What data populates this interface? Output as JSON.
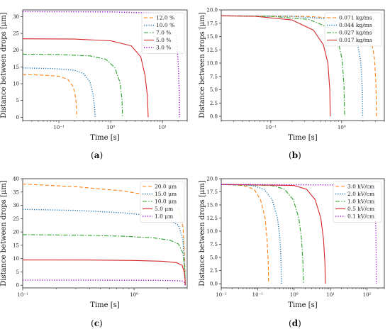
{
  "chart_data": [
    {
      "panel_label": "a",
      "type": "line",
      "xlabel": "Time [s]",
      "ylabel": "Distance between drops [μm]",
      "xscale": "log",
      "xlim": [
        0.02,
        30
      ],
      "ylim": [
        -1,
        32
      ],
      "yticks": [
        0,
        5,
        10,
        15,
        20,
        25,
        30
      ],
      "xtick_labels": [
        "10⁻¹",
        "10⁰",
        "10¹"
      ],
      "legend_position": "top-right",
      "series": [
        {
          "name": "12.0  %",
          "color": "#ff7f0e",
          "dash": "5,3",
          "points": [
            [
              0.02,
              12.7
            ],
            [
              0.05,
              12.55
            ],
            [
              0.1,
              12.2
            ],
            [
              0.15,
              11.3
            ],
            [
              0.19,
              9.0
            ],
            [
              0.21,
              6.0
            ],
            [
              0.22,
              2.5
            ],
            [
              0.22,
              0
            ]
          ]
        },
        {
          "name": "10.0  %",
          "color": "#1f77b4",
          "dash": "1.2,2",
          "points": [
            [
              0.02,
              14.7
            ],
            [
              0.08,
              14.5
            ],
            [
              0.2,
              14.0
            ],
            [
              0.3,
              13.0
            ],
            [
              0.4,
              10.5
            ],
            [
              0.46,
              6.5
            ],
            [
              0.49,
              2.5
            ],
            [
              0.5,
              0
            ]
          ]
        },
        {
          "name": "7.0  %",
          "color": "#2ca02c",
          "dash": "6,2,1.5,2",
          "points": [
            [
              0.02,
              18.8
            ],
            [
              0.1,
              18.7
            ],
            [
              0.4,
              18.3
            ],
            [
              0.8,
              17.3
            ],
            [
              1.2,
              14.8
            ],
            [
              1.5,
              10.5
            ],
            [
              1.65,
              5.5
            ],
            [
              1.7,
              0
            ]
          ]
        },
        {
          "name": "5.0  %",
          "color": "#d62728",
          "dash": "",
          "points": [
            [
              0.02,
              23.4
            ],
            [
              0.2,
              23.3
            ],
            [
              1.0,
              22.8
            ],
            [
              2.5,
              21.3
            ],
            [
              3.8,
              18.0
            ],
            [
              4.6,
              12.5
            ],
            [
              5.1,
              6.5
            ],
            [
              5.3,
              0
            ]
          ]
        },
        {
          "name": "3.0  %",
          "color": "#9400d3",
          "dash": "1.2,2.2",
          "points": [
            [
              0.02,
              31.5
            ],
            [
              1.0,
              31.4
            ],
            [
              6.0,
              31.1
            ],
            [
              12.0,
              30.3
            ],
            [
              16.0,
              28.5
            ],
            [
              18.5,
              24.0
            ],
            [
              20.0,
              17.0
            ],
            [
              21.0,
              8.0
            ],
            [
              21.3,
              0
            ]
          ]
        }
      ]
    },
    {
      "panel_label": "b",
      "type": "line",
      "xlabel": "Time [s]",
      "ylabel": "Distance between drops [μm]",
      "xscale": "log",
      "xlim": [
        0.02,
        4
      ],
      "ylim": [
        -0.8,
        20
      ],
      "yticks": [
        0.0,
        2.5,
        5.0,
        7.5,
        10.0,
        12.5,
        15.0,
        17.5,
        20.0
      ],
      "ytick_labels": [
        "0.0",
        "2.5",
        "5.0",
        "7.5",
        "10.0",
        "12.5",
        "15.0",
        "17.5",
        "20.0"
      ],
      "xtick_labels": [
        "10⁻¹",
        "10⁰"
      ],
      "legend_position": "top-right",
      "series": [
        {
          "name": "0.071  kg/ms",
          "color": "#ff7f0e",
          "dash": "5,3",
          "points": [
            [
              0.02,
              18.9
            ],
            [
              0.3,
              18.8
            ],
            [
              1.0,
              18.4
            ],
            [
              2.0,
              17.0
            ],
            [
              2.6,
              14.5
            ],
            [
              2.9,
              11.0
            ],
            [
              3.05,
              6.0
            ],
            [
              3.1,
              0
            ]
          ]
        },
        {
          "name": "0.044  kg/ms",
          "color": "#1f77b4",
          "dash": "1.2,2",
          "points": [
            [
              0.02,
              18.9
            ],
            [
              0.2,
              18.8
            ],
            [
              0.7,
              18.3
            ],
            [
              1.3,
              16.8
            ],
            [
              1.65,
              14.0
            ],
            [
              1.85,
              10.5
            ],
            [
              1.95,
              5.5
            ],
            [
              1.98,
              0
            ]
          ]
        },
        {
          "name": "0.027  kg/ms",
          "color": "#2ca02c",
          "dash": "6,2,1.5,2",
          "points": [
            [
              0.02,
              18.9
            ],
            [
              0.1,
              18.8
            ],
            [
              0.35,
              18.2
            ],
            [
              0.7,
              16.5
            ],
            [
              0.9,
              14.0
            ],
            [
              1.02,
              10.5
            ],
            [
              1.08,
              5.5
            ],
            [
              1.1,
              0
            ]
          ]
        },
        {
          "name": "0.017  kg/ms",
          "color": "#d62728",
          "dash": "",
          "points": [
            [
              0.02,
              18.9
            ],
            [
              0.06,
              18.8
            ],
            [
              0.2,
              18.1
            ],
            [
              0.4,
              16.2
            ],
            [
              0.55,
              13.5
            ],
            [
              0.64,
              10.0
            ],
            [
              0.68,
              5.0
            ],
            [
              0.69,
              0
            ]
          ]
        }
      ]
    },
    {
      "panel_label": "c",
      "type": "line",
      "xlabel": "Time [s]",
      "ylabel": "Distance between drops [μm]",
      "xscale": "log",
      "xlim": [
        0.1,
        3.0
      ],
      "ylim": [
        -1,
        40
      ],
      "yticks": [
        0,
        5,
        10,
        15,
        20,
        25,
        30,
        35,
        40
      ],
      "xtick_labels": [
        "10⁻¹",
        "10⁰"
      ],
      "legend_position": "top-right",
      "series": [
        {
          "name": "20.0 μm",
          "color": "#ff7f0e",
          "dash": "5,3",
          "points": [
            [
              0.1,
              38.0
            ],
            [
              0.3,
              37.0
            ],
            [
              0.8,
              35.4
            ],
            [
              1.5,
              33.5
            ],
            [
              2.1,
              31.5
            ],
            [
              2.5,
              29.0
            ],
            [
              2.75,
              22.0
            ],
            [
              2.85,
              10.0
            ],
            [
              2.88,
              0
            ]
          ]
        },
        {
          "name": "15.0 μm",
          "color": "#1f77b4",
          "dash": "1.2,2",
          "points": [
            [
              0.1,
              28.5
            ],
            [
              0.3,
              28.1
            ],
            [
              0.8,
              27.2
            ],
            [
              1.5,
              26.0
            ],
            [
              2.1,
              24.5
            ],
            [
              2.5,
              22.5
            ],
            [
              2.75,
              17.0
            ],
            [
              2.85,
              7.0
            ],
            [
              2.88,
              0
            ]
          ]
        },
        {
          "name": "10.0 μm",
          "color": "#2ca02c",
          "dash": "6,2,1.5,2",
          "points": [
            [
              0.1,
              19.0
            ],
            [
              0.3,
              18.8
            ],
            [
              0.8,
              18.4
            ],
            [
              1.5,
              17.8
            ],
            [
              2.1,
              16.9
            ],
            [
              2.5,
              15.5
            ],
            [
              2.75,
              12.0
            ],
            [
              2.85,
              5.0
            ],
            [
              2.88,
              0
            ]
          ]
        },
        {
          "name": "5.0 μm",
          "color": "#d62728",
          "dash": "",
          "points": [
            [
              0.1,
              9.5
            ],
            [
              0.4,
              9.45
            ],
            [
              1.0,
              9.3
            ],
            [
              1.8,
              9.0
            ],
            [
              2.4,
              8.5
            ],
            [
              2.7,
              7.5
            ],
            [
              2.82,
              5.0
            ],
            [
              2.87,
              2.0
            ],
            [
              2.88,
              0
            ]
          ]
        },
        {
          "name": "1.0 μm",
          "color": "#9400d3",
          "dash": "1.2,2.2",
          "points": [
            [
              0.1,
              1.9
            ],
            [
              0.5,
              1.9
            ],
            [
              1.5,
              1.85
            ],
            [
              2.4,
              1.75
            ],
            [
              2.7,
              1.55
            ],
            [
              2.83,
              1.1
            ],
            [
              2.88,
              0
            ]
          ]
        }
      ]
    },
    {
      "panel_label": "d",
      "type": "line",
      "xlabel": "Time [s]",
      "ylabel": "Distance between drops [μm]",
      "xscale": "log",
      "xlim": [
        0.01,
        300
      ],
      "ylim": [
        -0.8,
        20
      ],
      "yticks": [
        0.0,
        2.5,
        5.0,
        7.5,
        10.0,
        12.5,
        15.0,
        17.5,
        20.0
      ],
      "ytick_labels": [
        "0.0",
        "2.5",
        "5.0",
        "7.5",
        "10.0",
        "12.5",
        "15.0",
        "17.5",
        "20.0"
      ],
      "xtick_labels": [
        "10⁻²",
        "10⁻¹",
        "10⁰",
        "10¹",
        "10²"
      ],
      "legend_position": "top-right",
      "series": [
        {
          "name": "3.0 kV/cm",
          "color": "#ff7f0e",
          "dash": "5,3",
          "points": [
            [
              0.01,
              18.9
            ],
            [
              0.04,
              18.7
            ],
            [
              0.08,
              18.0
            ],
            [
              0.12,
              16.0
            ],
            [
              0.16,
              12.5
            ],
            [
              0.18,
              8.5
            ],
            [
              0.195,
              4.0
            ],
            [
              0.2,
              0
            ]
          ]
        },
        {
          "name": "2.0 kV/cm",
          "color": "#1f77b4",
          "dash": "1.2,2",
          "points": [
            [
              0.01,
              18.9
            ],
            [
              0.07,
              18.7
            ],
            [
              0.15,
              18.0
            ],
            [
              0.25,
              16.0
            ],
            [
              0.35,
              12.5
            ],
            [
              0.41,
              8.5
            ],
            [
              0.44,
              4.0
            ],
            [
              0.45,
              0
            ]
          ]
        },
        {
          "name": "1.0 kV/cm",
          "color": "#2ca02c",
          "dash": "6,2,1.5,2",
          "points": [
            [
              0.01,
              18.9
            ],
            [
              0.25,
              18.7
            ],
            [
              0.55,
              18.0
            ],
            [
              0.95,
              16.0
            ],
            [
              1.35,
              12.5
            ],
            [
              1.6,
              8.5
            ],
            [
              1.75,
              4.0
            ],
            [
              1.8,
              0
            ]
          ]
        },
        {
          "name": "0.5 kV/cm",
          "color": "#d62728",
          "dash": "",
          "points": [
            [
              0.01,
              18.9
            ],
            [
              1.0,
              18.7
            ],
            [
              2.2,
              18.0
            ],
            [
              3.8,
              16.0
            ],
            [
              5.4,
              12.5
            ],
            [
              6.4,
              8.5
            ],
            [
              7.0,
              4.0
            ],
            [
              7.2,
              0
            ]
          ]
        },
        {
          "name": "0.1 kV/cm",
          "color": "#9400d3",
          "dash": "1.2,2.2",
          "points": [
            [
              0.01,
              18.9
            ],
            [
              30,
              18.8
            ],
            [
              100,
              18.6
            ],
            [
              150,
              17.5
            ],
            [
              170,
              14.0
            ],
            [
              177,
              9.0
            ],
            [
              180,
              4.0
            ],
            [
              181,
              0
            ]
          ]
        }
      ]
    }
  ]
}
